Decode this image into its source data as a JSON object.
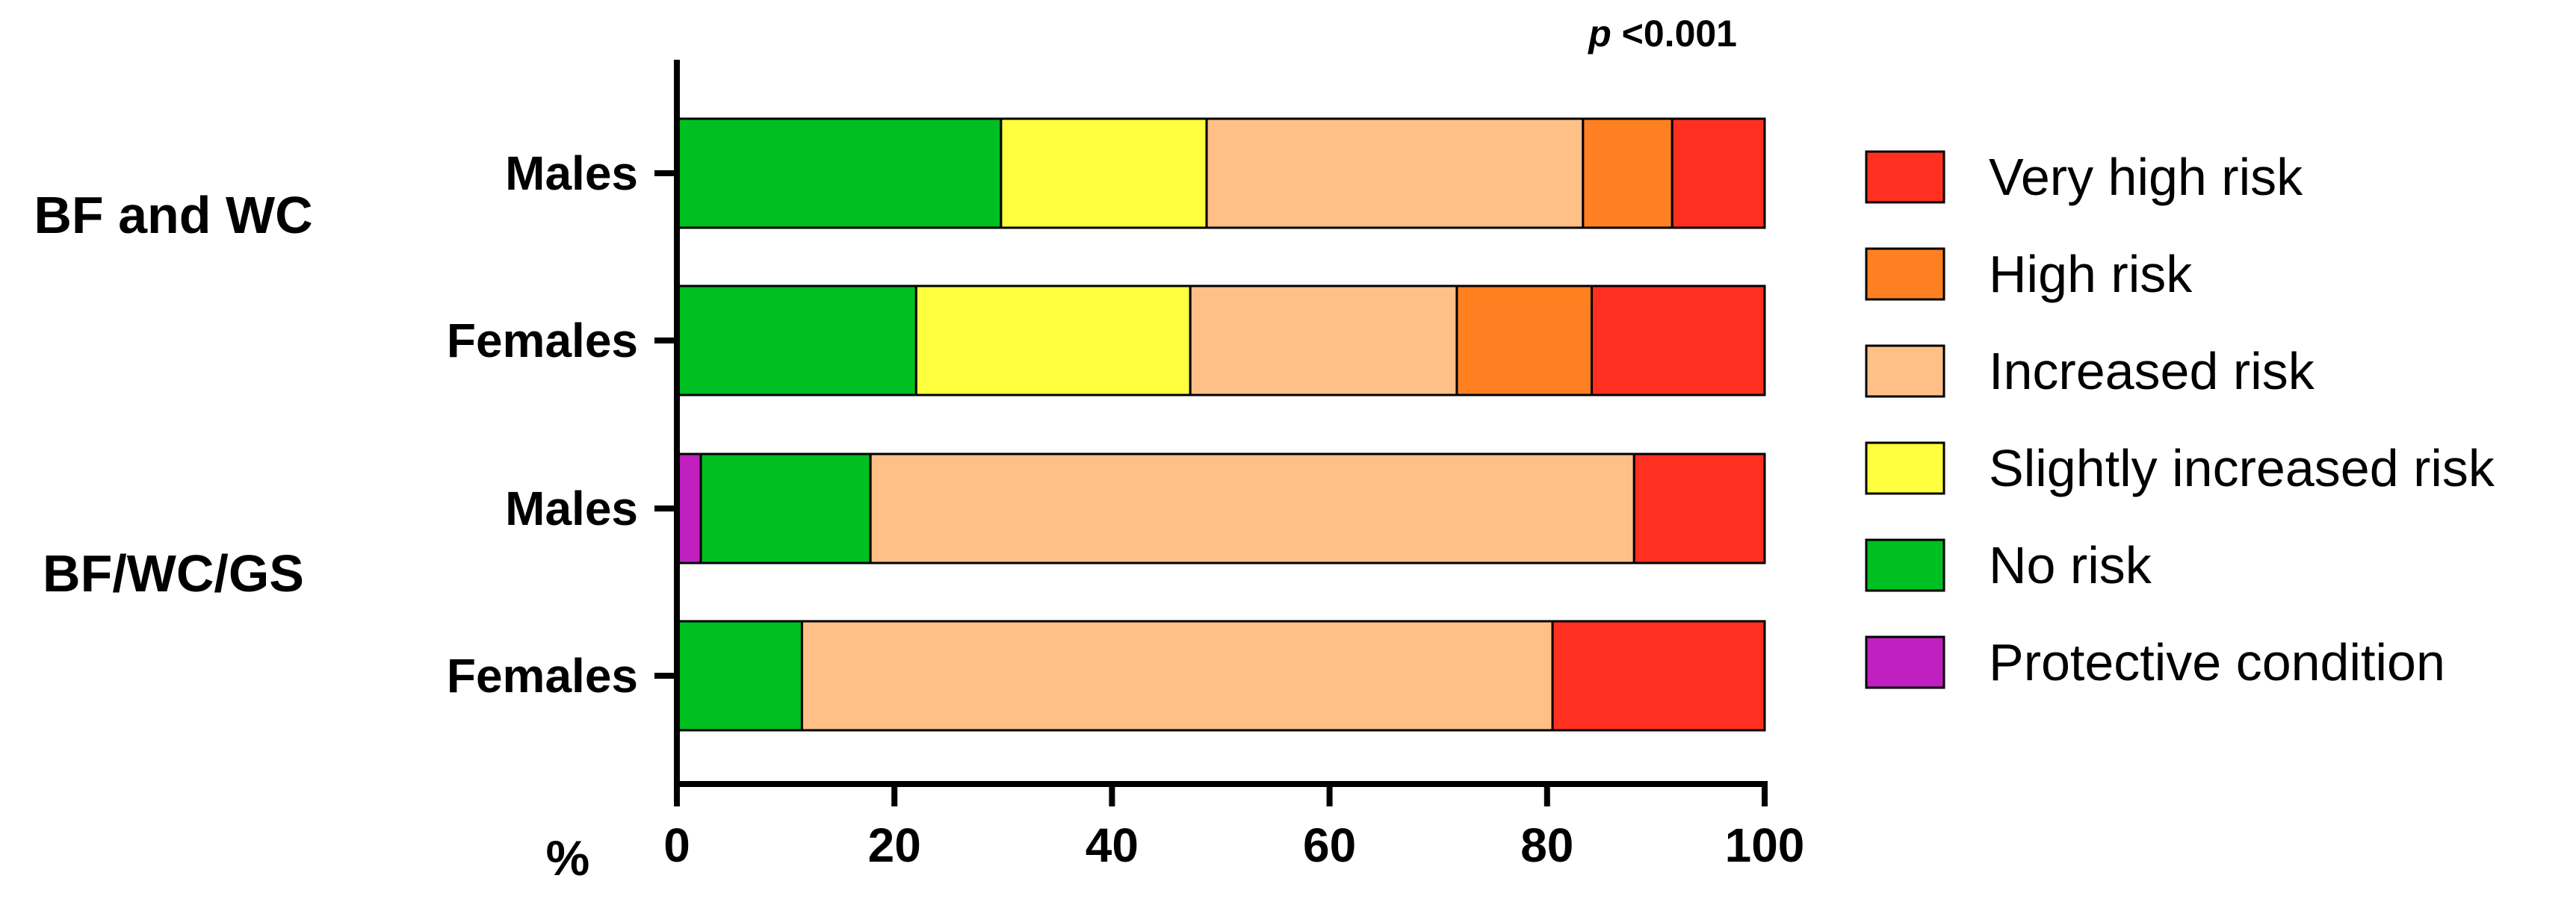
{
  "chart_data": {
    "type": "bar",
    "orientation": "horizontal",
    "stacked": true,
    "xlim": [
      0,
      100
    ],
    "xticks": [
      "0",
      "20",
      "40",
      "60",
      "80",
      "100"
    ],
    "xlabel": "%",
    "annotation_prefix": "p",
    "annotation_value": "<0.001",
    "groups": [
      {
        "label": "BF and WC",
        "categories": [
          "Males",
          "Females"
        ]
      },
      {
        "label": "BF/WC/GS",
        "categories": [
          "Males",
          "Females"
        ]
      }
    ],
    "categories": [
      "Males",
      "Females",
      "Males",
      "Females"
    ],
    "series": [
      {
        "name": "Protective condition",
        "color": "#c020c0",
        "values": [
          0,
          0,
          2.2,
          0
        ]
      },
      {
        "name": "No risk",
        "color": "#00bf20",
        "values": [
          29.8,
          22.0,
          15.6,
          11.5
        ]
      },
      {
        "name": "Slightly increased risk",
        "color": "#ffff40",
        "values": [
          18.9,
          25.2,
          0,
          0
        ]
      },
      {
        "name": "Increased risk",
        "color": "#ffc088",
        "values": [
          34.6,
          24.5,
          70.2,
          69.0
        ]
      },
      {
        "name": "High risk",
        "color": "#ff8020",
        "values": [
          8.2,
          12.4,
          0,
          0
        ]
      },
      {
        "name": "Very high risk",
        "color": "#ff3020",
        "values": [
          8.5,
          15.9,
          12.0,
          19.5
        ]
      }
    ],
    "legend_order": [
      "Very high risk",
      "High risk",
      "Increased risk",
      "Slightly increased risk",
      "No risk",
      "Protective condition"
    ],
    "legend_position": "right",
    "grid": false
  }
}
